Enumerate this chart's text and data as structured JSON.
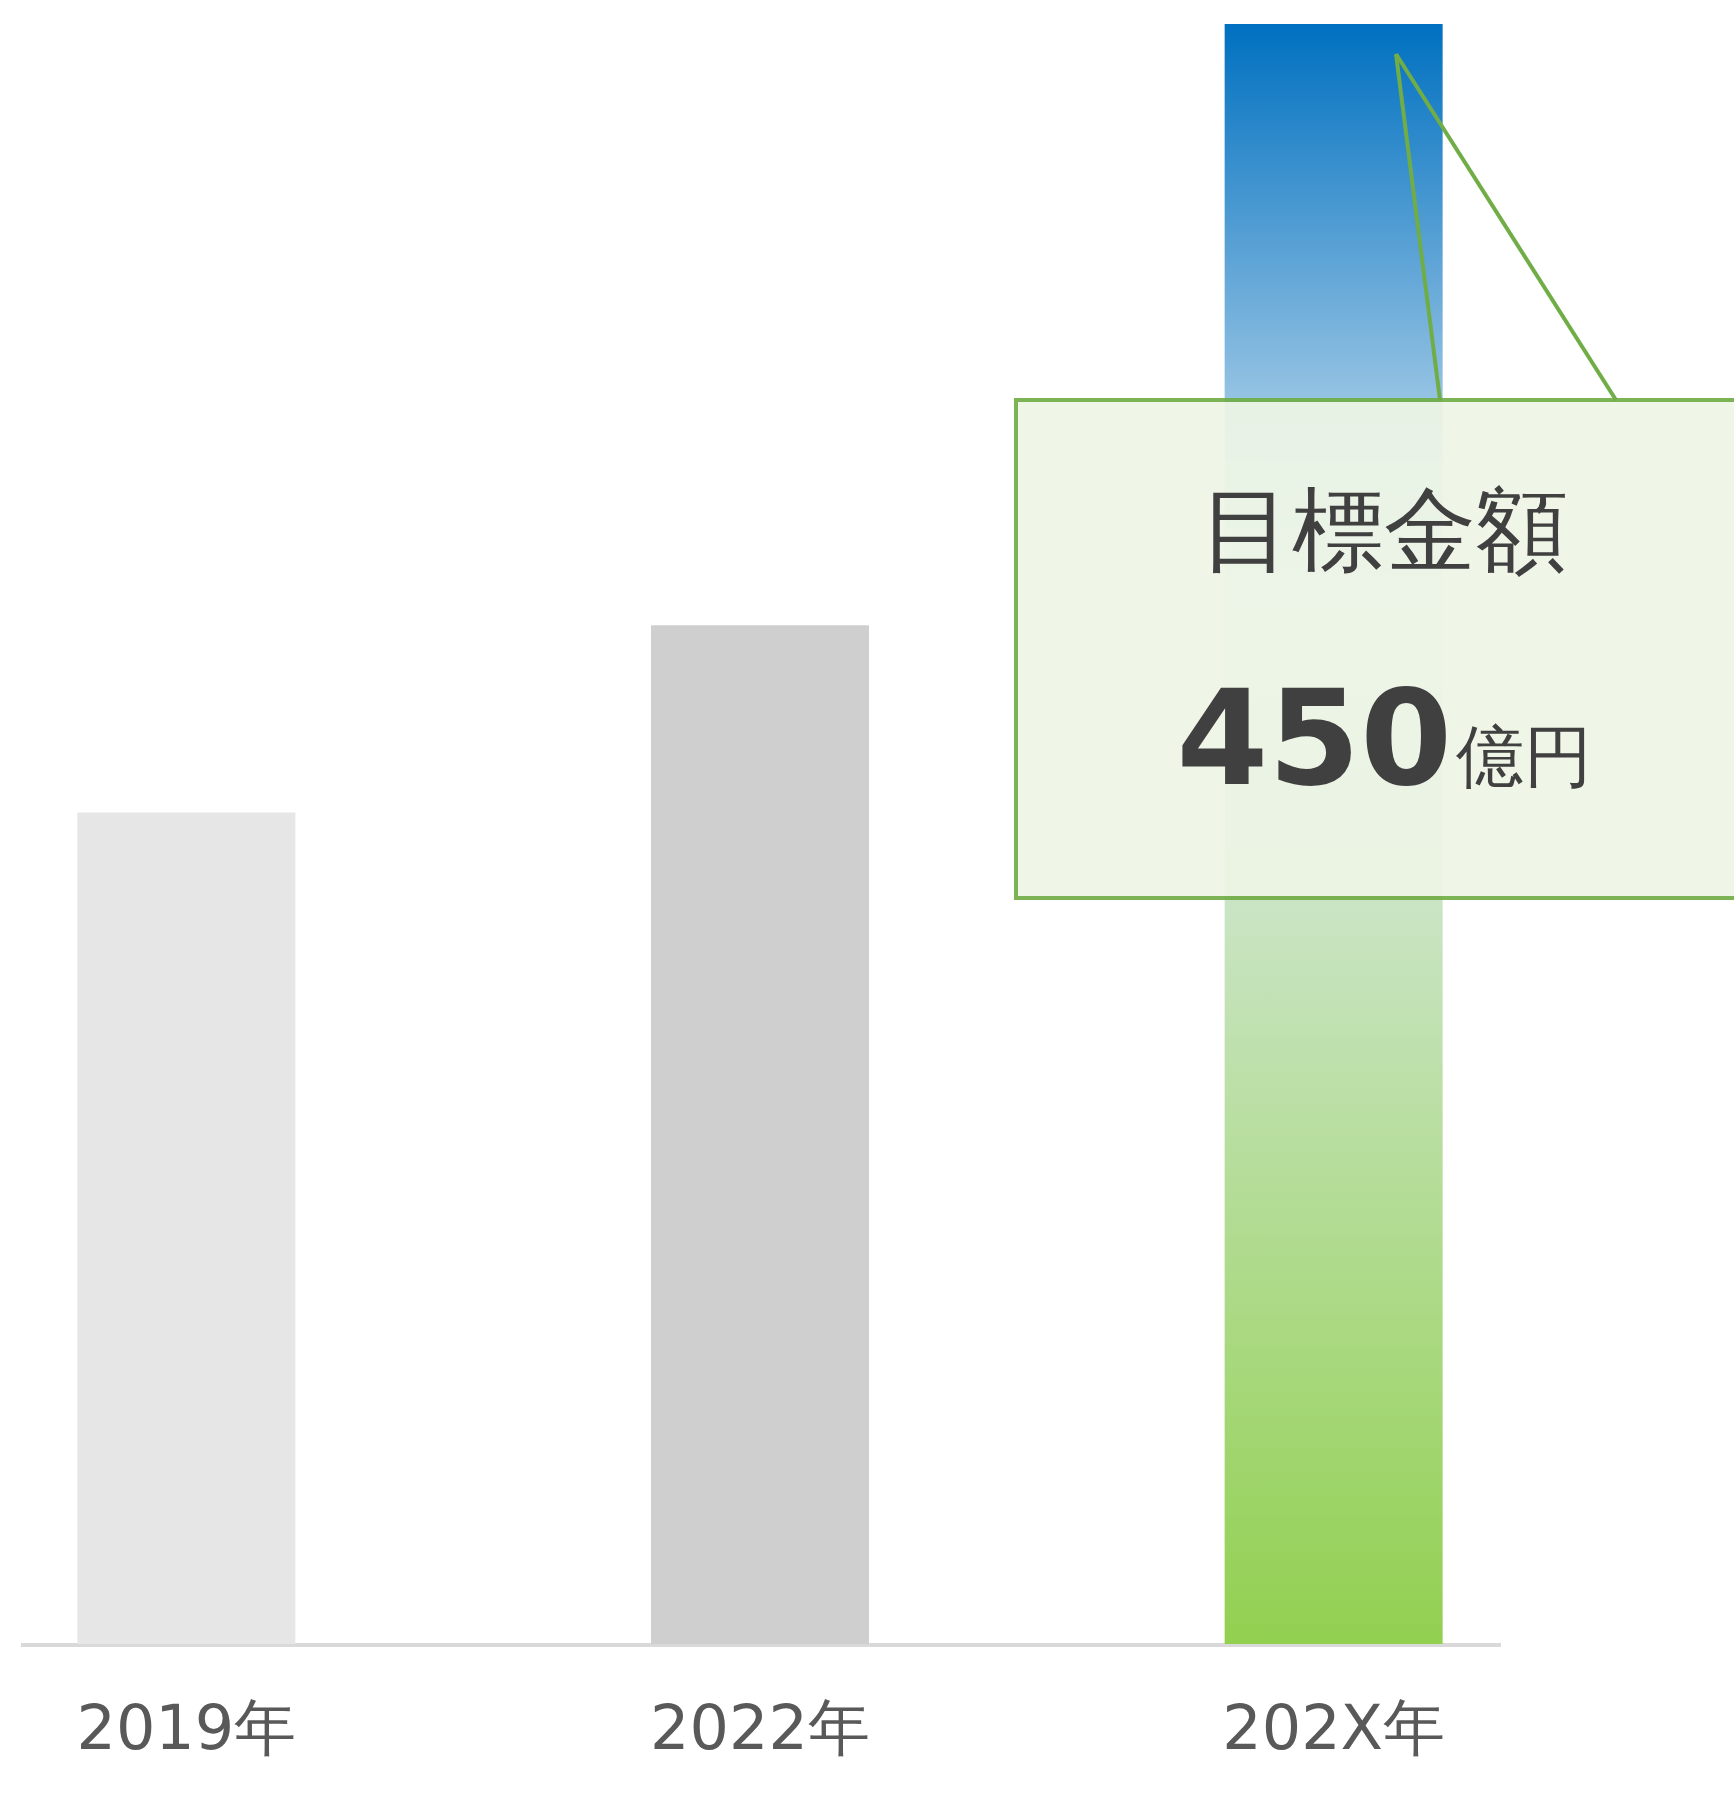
{
  "chart_data": {
    "type": "bar",
    "categories": [
      "2019年",
      "2022年",
      "202X年"
    ],
    "values": [
      231,
      283,
      450
    ],
    "colors": [
      "#e6e6e6",
      "#d0cfd0",
      "#92d050"
    ],
    "value_labels": [
      null,
      null,
      "450億円"
    ],
    "ylim": [
      0,
      450
    ],
    "tick_labels": "x",
    "annotations": [
      "目標金額"
    ]
  }
}
